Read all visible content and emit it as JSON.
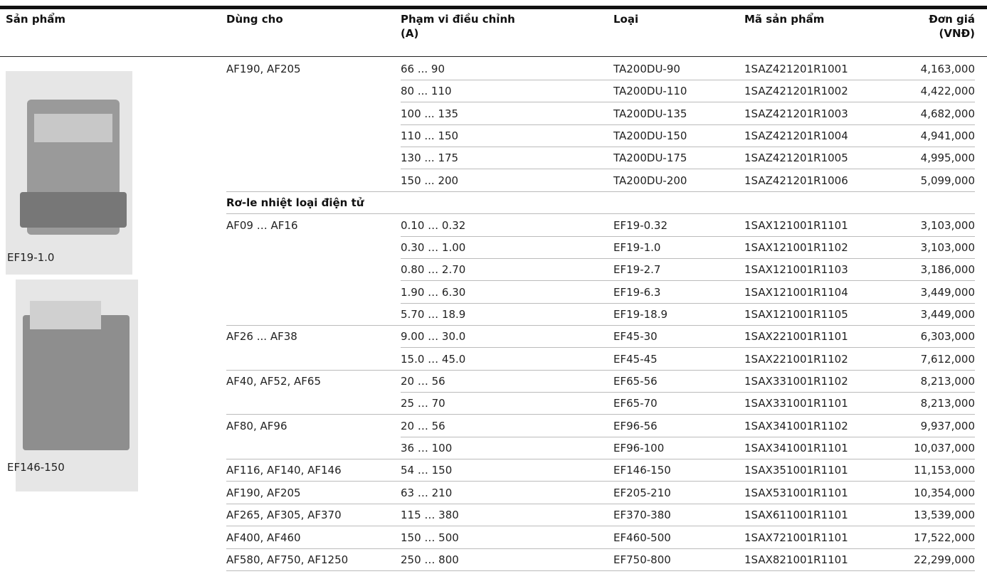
{
  "header": {
    "columns": [
      [
        "Sản phẩm"
      ],
      [
        "Dùng cho"
      ],
      [
        "Phạm vi điều chỉnh",
        "(A)"
      ],
      [
        "Loại"
      ],
      [
        "Mã sản phẩm"
      ],
      [
        "Đơn giá",
        "(VNĐ)"
      ]
    ]
  },
  "images": [
    {
      "caption": "EF19-1.0"
    },
    {
      "caption": "EF146-150"
    }
  ],
  "table": {
    "blocks": [
      {
        "used_for": "AF190, AF205",
        "rows": [
          [
            "66 ... 90",
            "TA200DU-90",
            "1SAZ421201R1001",
            "4,163,000"
          ],
          [
            "80 ... 110",
            "TA200DU-110",
            "1SAZ421201R1002",
            "4,422,000"
          ],
          [
            "100 ... 135",
            "TA200DU-135",
            "1SAZ421201R1003",
            "4,682,000"
          ],
          [
            "110 ... 150",
            "TA200DU-150",
            "1SAZ421201R1004",
            "4,941,000"
          ],
          [
            "130 ... 175",
            "TA200DU-175",
            "1SAZ421201R1005",
            "4,995,000"
          ],
          [
            "150 ... 200",
            "TA200DU-200",
            "1SAZ421201R1006",
            "5,099,000"
          ]
        ]
      },
      {
        "section": "Rơ-le nhiệt loại điện tử"
      },
      {
        "used_for": "AF09 … AF16",
        "rows": [
          [
            "0.10 … 0.32",
            "EF19-0.32",
            "1SAX121001R1101",
            "3,103,000"
          ],
          [
            "0.30 … 1.00",
            "EF19-1.0",
            "1SAX121001R1102",
            "3,103,000"
          ],
          [
            "0.80 … 2.70",
            "EF19-2.7",
            "1SAX121001R1103",
            "3,186,000"
          ],
          [
            "1.90 … 6.30",
            "EF19-6.3",
            "1SAX121001R1104",
            "3,449,000"
          ],
          [
            "5.70 … 18.9",
            "EF19-18.9",
            "1SAX121001R1105",
            "3,449,000"
          ]
        ]
      },
      {
        "used_for": "AF26 ... AF38",
        "rows": [
          [
            "9.00 … 30.0",
            "EF45-30",
            "1SAX221001R1101",
            "6,303,000"
          ],
          [
            "15.0 … 45.0",
            "EF45-45",
            "1SAX221001R1102",
            "7,612,000"
          ]
        ]
      },
      {
        "used_for": "AF40, AF52, AF65",
        "rows": [
          [
            "20 … 56",
            "EF65-56",
            "1SAX331001R1102",
            "8,213,000"
          ],
          [
            "25 … 70",
            "EF65-70",
            "1SAX331001R1101",
            "8,213,000"
          ]
        ]
      },
      {
        "used_for": "AF80, AF96",
        "rows": [
          [
            "20 … 56",
            "EF96-56",
            "1SAX341001R1102",
            "9,937,000"
          ],
          [
            "36 … 100",
            "EF96-100",
            "1SAX341001R1101",
            "10,037,000"
          ]
        ]
      },
      {
        "used_for": "AF116, AF140, AF146",
        "rows": [
          [
            "54 … 150",
            "EF146-150",
            "1SAX351001R1101",
            "11,153,000"
          ]
        ]
      },
      {
        "used_for": "AF190, AF205",
        "rows": [
          [
            "63 … 210",
            "EF205-210",
            "1SAX531001R1101",
            "10,354,000"
          ]
        ]
      },
      {
        "used_for": "AF265, AF305, AF370",
        "rows": [
          [
            "115 … 380",
            "EF370-380",
            "1SAX611001R1101",
            "13,539,000"
          ]
        ]
      },
      {
        "used_for": "AF400, AF460",
        "rows": [
          [
            "150 … 500",
            "EF460-500",
            "1SAX721001R1101",
            "17,522,000"
          ]
        ]
      },
      {
        "used_for": "AF580, AF750, AF1250",
        "rows": [
          [
            "250 … 800",
            "EF750-800",
            "1SAX821001R1101",
            "22,299,000"
          ]
        ]
      }
    ]
  }
}
